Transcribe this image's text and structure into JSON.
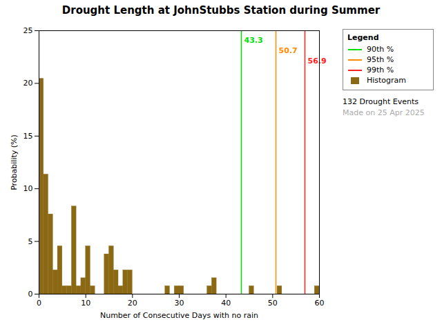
{
  "chart_data": {
    "type": "histogram",
    "title": "Drought Length at JohnStubbs Station during Summer",
    "xlabel": "Number of Consecutive Days with no rain",
    "ylabel": "Probability (%)",
    "bins": [
      0,
      1,
      2,
      3,
      4,
      5,
      6,
      7,
      8,
      9,
      10,
      11,
      12,
      13,
      14,
      15,
      16,
      17,
      18,
      19,
      20,
      21,
      22,
      23,
      24,
      25,
      26,
      27,
      28,
      29,
      30,
      31,
      32,
      33,
      34,
      35,
      36,
      37,
      38,
      39,
      40,
      41,
      42,
      43,
      44,
      45,
      46,
      47,
      48,
      49,
      50,
      51,
      52,
      53,
      54,
      55,
      56,
      57,
      58,
      59,
      60
    ],
    "xlim": [
      0,
      60
    ],
    "ylim": [
      0,
      25
    ],
    "xticks": [
      0,
      10,
      20,
      30,
      40,
      50,
      60
    ],
    "yticks": [
      0,
      5,
      10,
      15,
      20,
      25
    ],
    "grid": false,
    "legend": "upper right",
    "legend_title": "Legend",
    "series": [
      {
        "name": "Histogram",
        "type": "bar",
        "color": "#8B6914",
        "values": [
          20.45,
          11.36,
          7.58,
          2.27,
          4.55,
          0.76,
          0.76,
          8.33,
          0.76,
          1.52,
          4.55,
          0.76,
          0,
          0,
          3.79,
          4.55,
          2.27,
          0.76,
          2.27,
          2.27,
          0,
          0,
          0,
          0,
          0,
          0,
          0,
          0.76,
          0,
          0.76,
          0.76,
          0,
          0,
          0,
          0,
          0,
          0.76,
          1.52,
          0,
          0,
          0,
          0,
          0,
          0,
          0,
          0.76,
          0,
          0,
          0,
          0,
          0,
          0.76,
          0,
          0,
          0,
          0,
          0,
          0,
          0,
          0.76
        ]
      },
      {
        "name": "90th %",
        "type": "rule",
        "color": "#00DD00",
        "x": 43.3,
        "data_labels": true
      },
      {
        "name": "95th %",
        "type": "rule",
        "color": "#FF8C00",
        "x": 50.7,
        "data_labels": true
      },
      {
        "name": "99th %",
        "type": "rule",
        "color": "#FF2020",
        "x": 56.9,
        "data_labels": true
      }
    ],
    "annotations": [
      {
        "text": "132 Drought Events"
      },
      {
        "text": "Made on 25 Apr 2025",
        "color": "#AAAAAA"
      }
    ]
  }
}
